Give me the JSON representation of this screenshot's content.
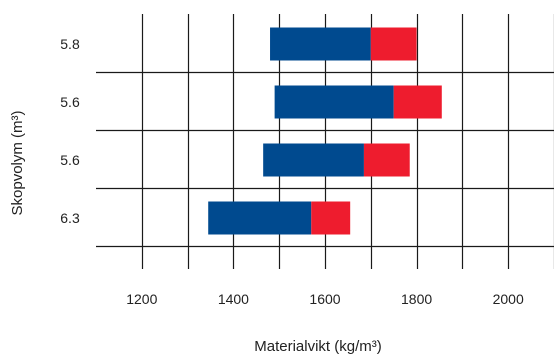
{
  "chart_data": {
    "type": "bar",
    "orientation": "horizontal",
    "stacked": true,
    "title": "",
    "xlabel": "Materialvikt (kg/m³)",
    "ylabel": "Skopvolym (m³)",
    "xlim": [
      1100,
      2100
    ],
    "xticks": [
      1200,
      1400,
      1600,
      1800,
      2000
    ],
    "grid": true,
    "categories": [
      "5.8",
      "5.6",
      "5.6",
      "6.3"
    ],
    "series": [
      {
        "color": "#004a8f",
        "starts": [
          1480,
          1490,
          1465,
          1345
        ],
        "ends": [
          1700,
          1750,
          1685,
          1570
        ]
      },
      {
        "color": "#ee1c2e",
        "starts": [
          1700,
          1750,
          1685,
          1570
        ],
        "ends": [
          1800,
          1855,
          1785,
          1655
        ]
      }
    ]
  }
}
